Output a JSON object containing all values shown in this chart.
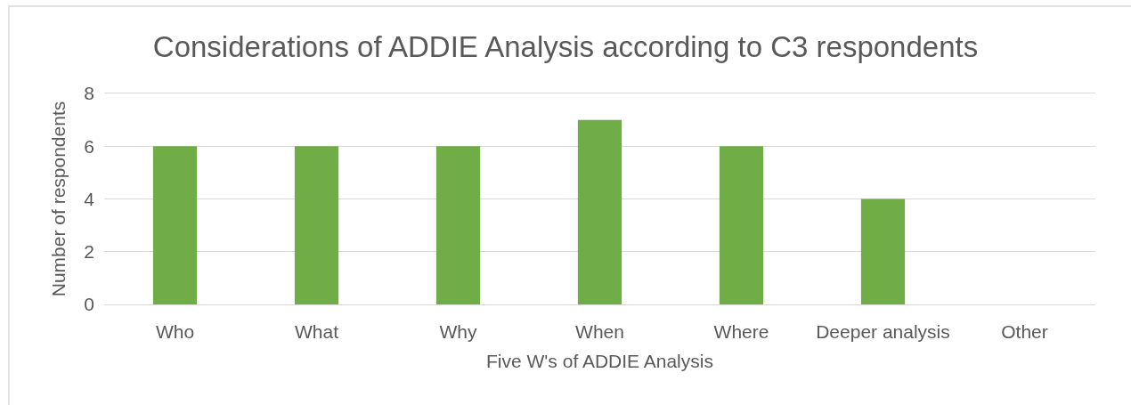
{
  "chart_data": {
    "type": "bar",
    "title": "Considerations of ADDIE Analysis according to C3 respondents",
    "xlabel": "Five W's of ADDIE Analysis",
    "ylabel": "Number of respondents",
    "categories": [
      "Who",
      "What",
      "Why",
      "When",
      "Where",
      "Deeper analysis",
      "Other"
    ],
    "values": [
      6,
      6,
      6,
      7,
      6,
      4,
      0
    ],
    "color": "#70ad47",
    "ylim": [
      0,
      8
    ],
    "yticks": [
      0,
      2,
      4,
      6,
      8
    ],
    "grid": "y"
  }
}
